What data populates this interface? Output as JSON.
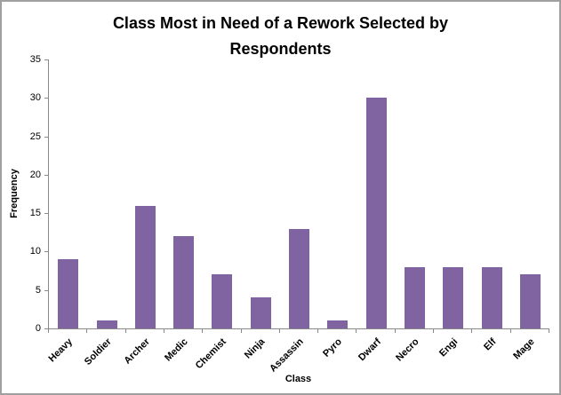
{
  "frame": {
    "border_color": "#a0a0a0",
    "background": "#ffffff"
  },
  "chart_data": {
    "type": "bar",
    "title": "Class Most in Need of a Rework Selected by Respondents",
    "xlabel": "Class",
    "ylabel": "Frequency",
    "categories": [
      "Heavy",
      "Soldier",
      "Archer",
      "Medic",
      "Chemist",
      "Ninja",
      "Assassin",
      "Pyro",
      "Dwarf",
      "Necro",
      "Engi",
      "Elf",
      "Mage"
    ],
    "values": [
      9,
      1,
      16,
      12,
      7,
      4,
      13,
      1,
      30,
      8,
      8,
      8,
      7
    ],
    "ylim": [
      0,
      35
    ],
    "yticks": [
      0,
      5,
      10,
      15,
      20,
      25,
      30,
      35
    ],
    "grid": false,
    "legend": null,
    "bar_color": "#8064A2",
    "axis_color": "#898989",
    "text_color": "#000000"
  }
}
